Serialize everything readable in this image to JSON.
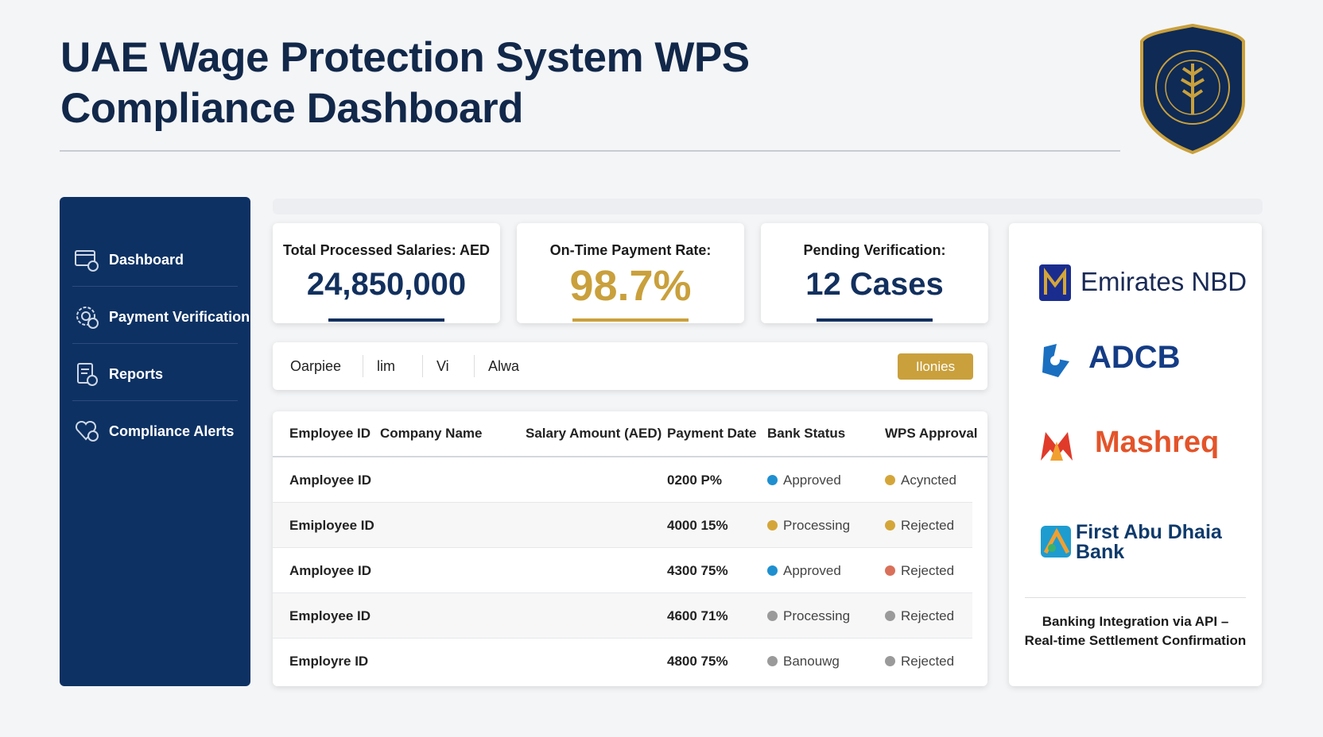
{
  "header": {
    "title_line1": "UAE Wage Protection System WPS",
    "title_line2": "Compliance Dashboard"
  },
  "sidebar": {
    "items": [
      "Dashboard",
      "Payment Verification",
      "Reports",
      "Compliance Alerts"
    ]
  },
  "kpis": [
    {
      "label": "Total Processed Salaries: AED",
      "value": "24,850,000",
      "color": "#12305e"
    },
    {
      "label": "On-Time Payment Rate:",
      "value": "98.7%",
      "color": "#c9a03c"
    },
    {
      "label": "Pending Verification:",
      "value": "12 Cases",
      "color": "#12305e"
    }
  ],
  "tabs": [
    "Oarpiee",
    "lim",
    "Vi",
    "Alwa"
  ],
  "button": "Ilonies",
  "table": {
    "columns": [
      "Employee ID",
      "Company Name",
      "Salary Amount (AED)",
      "Payment Date",
      "Bank Status",
      "WPS Approval"
    ],
    "rows": [
      {
        "id": "Amployee ID",
        "payment_date": "0200 P%",
        "bank_status": {
          "text": "Approved",
          "color": "#1f8fd0"
        },
        "wps_approval": {
          "text": "Acyncted",
          "color": "#d4a63a"
        }
      },
      {
        "id": "Emiployee ID",
        "payment_date": "4000 15%",
        "bank_status": {
          "text": "Processing",
          "color": "#d4a63a"
        },
        "wps_approval": {
          "text": "Rejected",
          "color": "#d4a63a"
        }
      },
      {
        "id": "Amployee ID",
        "payment_date": "4300 75%",
        "bank_status": {
          "text": "Approved",
          "color": "#1f8fd0"
        },
        "wps_approval": {
          "text": "Rejected",
          "color": "#d9705a"
        }
      },
      {
        "id": "Employee ID",
        "payment_date": "4600 71%",
        "bank_status": {
          "text": "Processing",
          "color": "#9a9a9a"
        },
        "wps_approval": {
          "text": "Rejected",
          "color": "#9a9a9a"
        }
      },
      {
        "id": "Employre ID",
        "payment_date": "4800 75%",
        "bank_status": {
          "text": "Banouwg",
          "color": "#9a9a9a"
        },
        "wps_approval": {
          "text": "Rejected",
          "color": "#9a9a9a"
        }
      }
    ]
  },
  "banks": [
    "Emirates NBD",
    "ADCB",
    "Mashreq",
    "First Abu Dhaia Bank"
  ],
  "footer": {
    "line1": "Banking Integration via API –",
    "line2": "Real-time Settlement Confirmation"
  }
}
